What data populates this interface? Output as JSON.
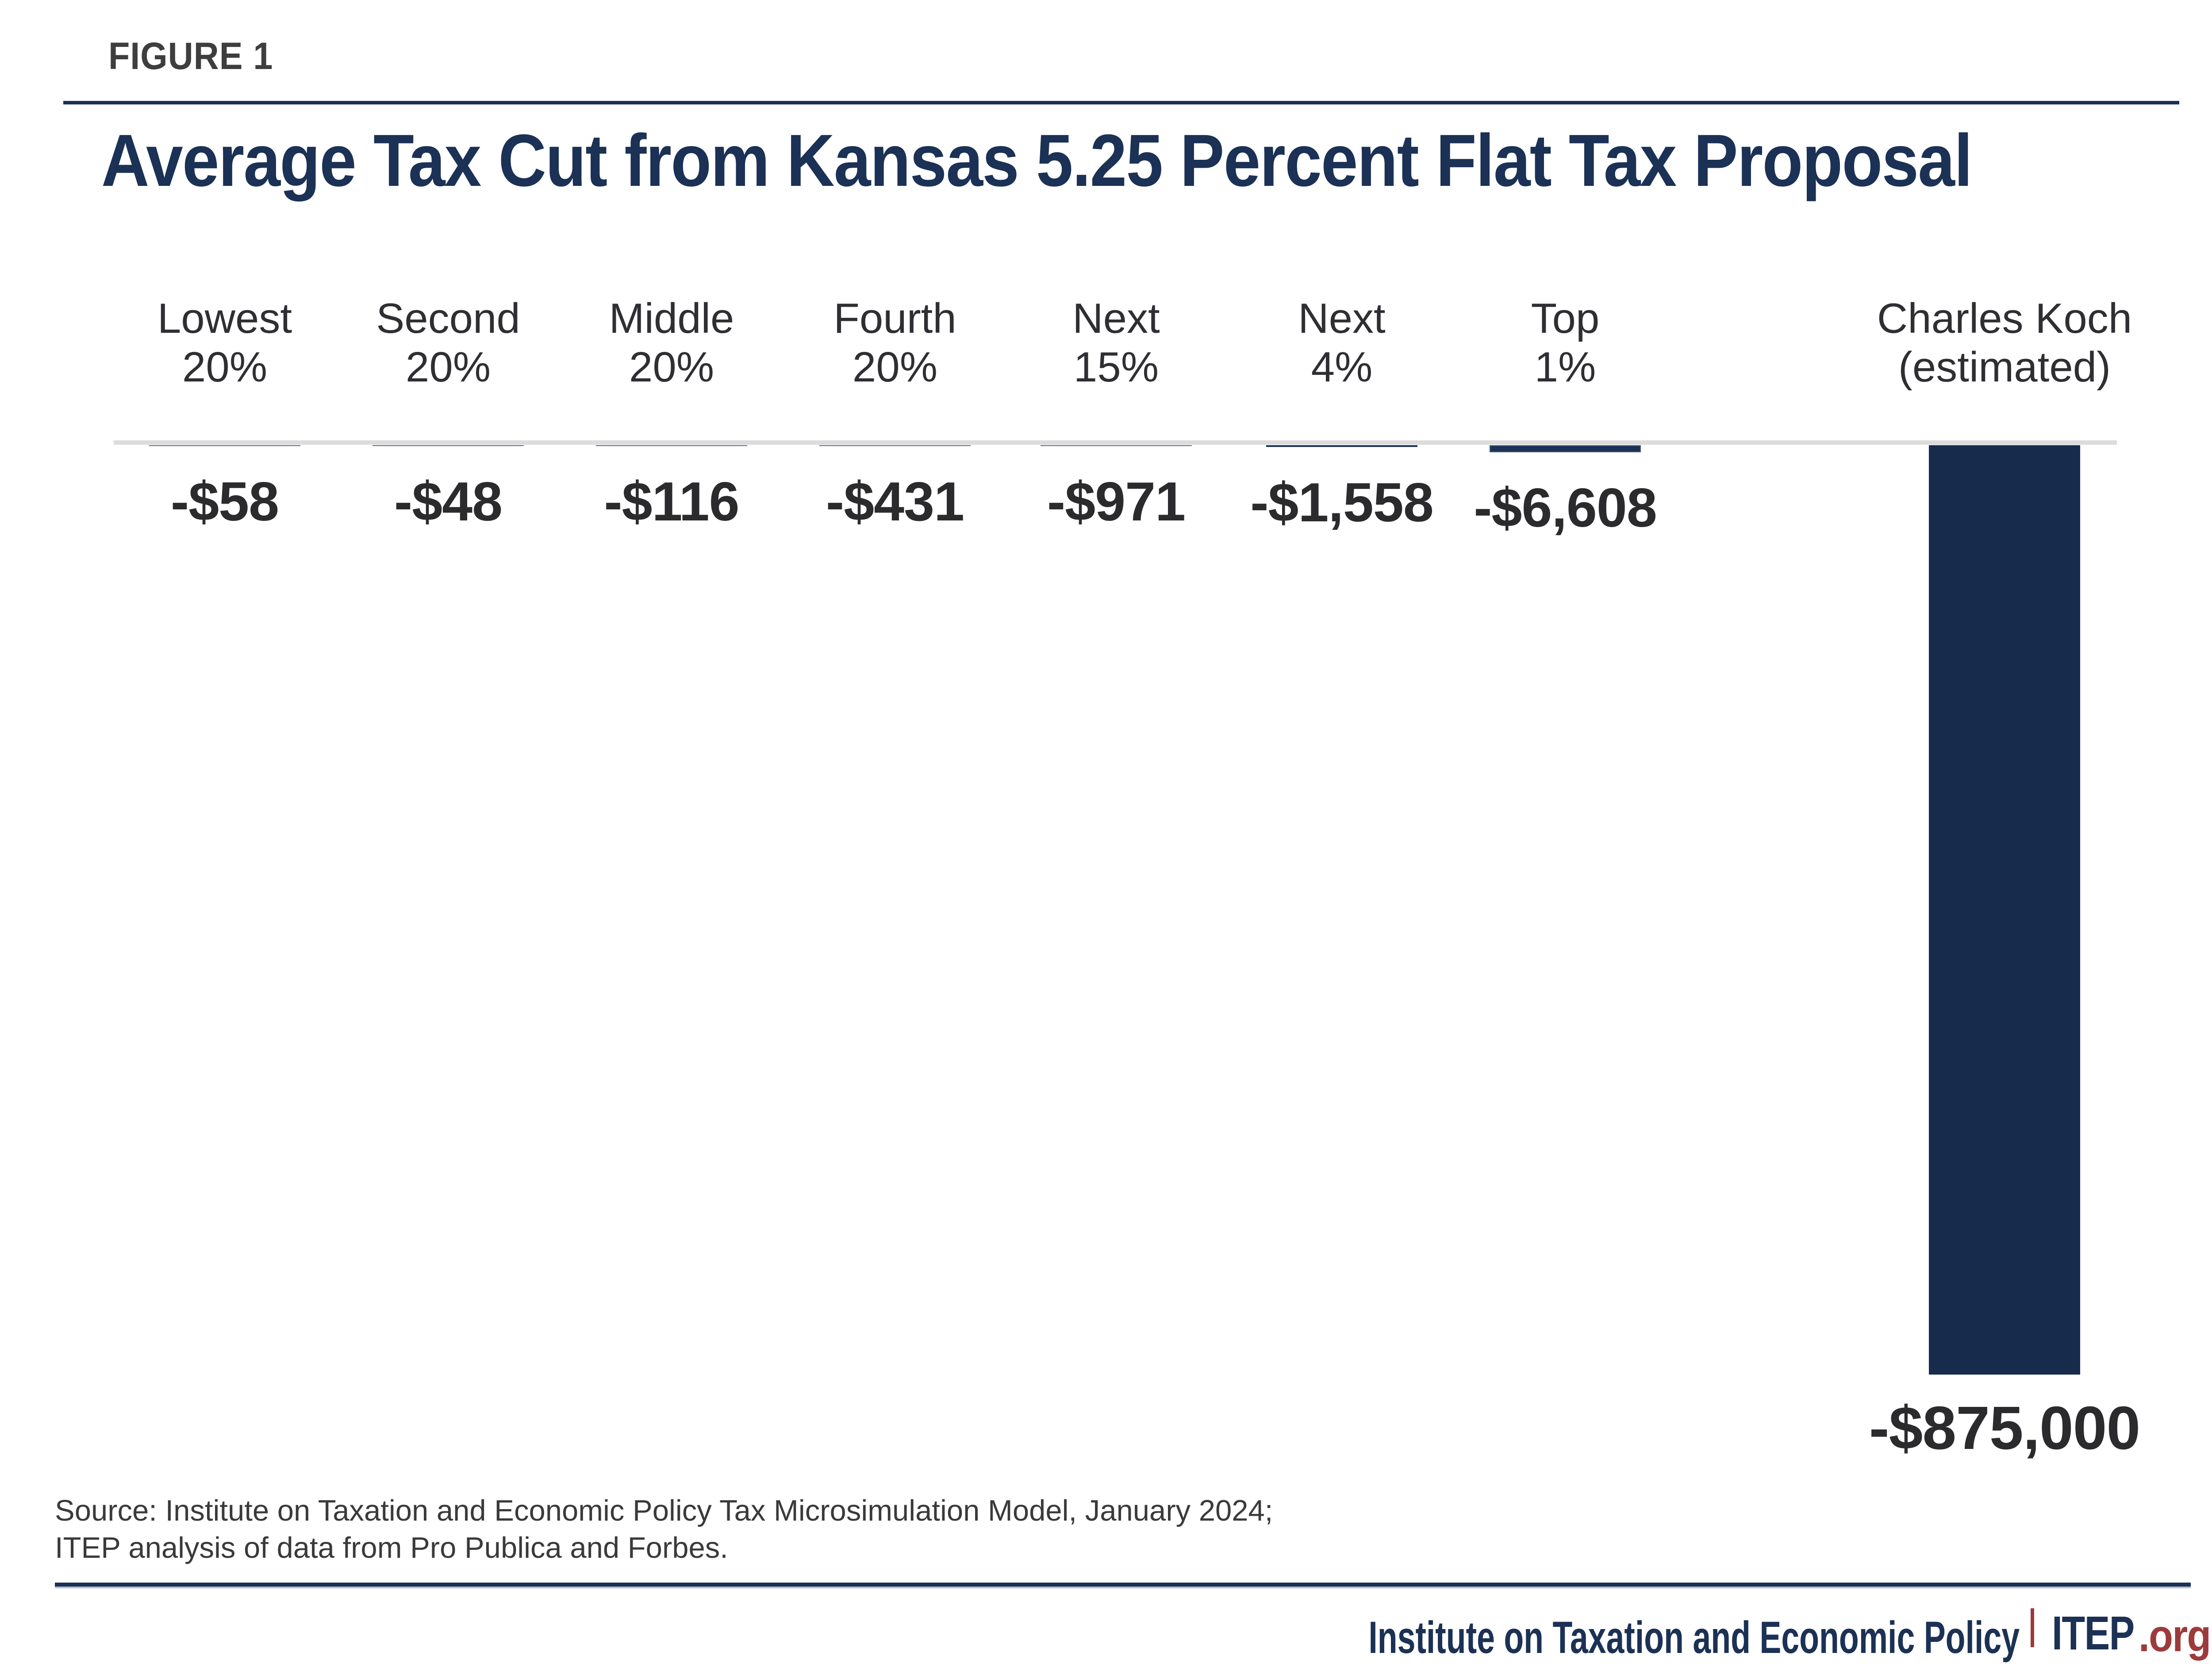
{
  "figure_label": "FIGURE 1",
  "title": "Average Tax Cut from Kansas 5.25 Percent Flat Tax Proposal",
  "source": {
    "line1": "Source: Institute on Taxation and Economic Policy Tax Microsimulation Model, January 2024;",
    "line2": "ITEP analysis of data from Pro Publica and Forbes."
  },
  "footer": {
    "org_name": "Institute on Taxation and Economic Policy",
    "brand": "ITEP",
    "brand_suffix": ".org"
  },
  "colors": {
    "navy": "#1b3155",
    "bar_navy": "#172b4d",
    "thin_bar_slate": "#5e6f87",
    "baseline_gray": "#dcdcdc",
    "maroon": "#9d3a3b",
    "figure_label_gray": "#3e3e3e",
    "text_dark": "#2b2b2e",
    "rule_light_blue": "#b6c1d1"
  },
  "chart_data": {
    "type": "bar",
    "orientation": "vertical",
    "direction": "negative-down-from-zero-baseline",
    "unit": "USD, average tax cut per taxpayer",
    "baseline_value": 0,
    "y_range": [
      -875000,
      0
    ],
    "gridlines": false,
    "legend_position": "none",
    "title": "Average Tax Cut from Kansas 5.25 Percent Flat Tax Proposal",
    "categories": [
      "Lowest 20%",
      "Second 20%",
      "Middle 20%",
      "Fourth 20%",
      "Next 15%",
      "Next 4%",
      "Top 1%",
      "Charles Koch (estimated)"
    ],
    "values": [
      -58,
      -48,
      -116,
      -431,
      -971,
      -1558,
      -6608,
      -875000
    ],
    "groups": [
      {
        "label": "Lowest",
        "sub": "20%",
        "value": -58,
        "display": "-$58"
      },
      {
        "label": "Second",
        "sub": "20%",
        "value": -48,
        "display": "-$48"
      },
      {
        "label": "Middle",
        "sub": "20%",
        "value": -116,
        "display": "-$116"
      },
      {
        "label": "Fourth",
        "sub": "20%",
        "value": -431,
        "display": "-$431"
      },
      {
        "label": "Next",
        "sub": "15%",
        "value": -971,
        "display": "-$971"
      },
      {
        "label": "Next",
        "sub": "4%",
        "value": -1558,
        "display": "-$1,558"
      },
      {
        "label": "Top",
        "sub": "1%",
        "value": -6608,
        "display": "-$6,608"
      },
      {
        "label": "Charles Koch",
        "sub": "(estimated)",
        "value": -875000,
        "display": "-$875,000"
      }
    ]
  }
}
